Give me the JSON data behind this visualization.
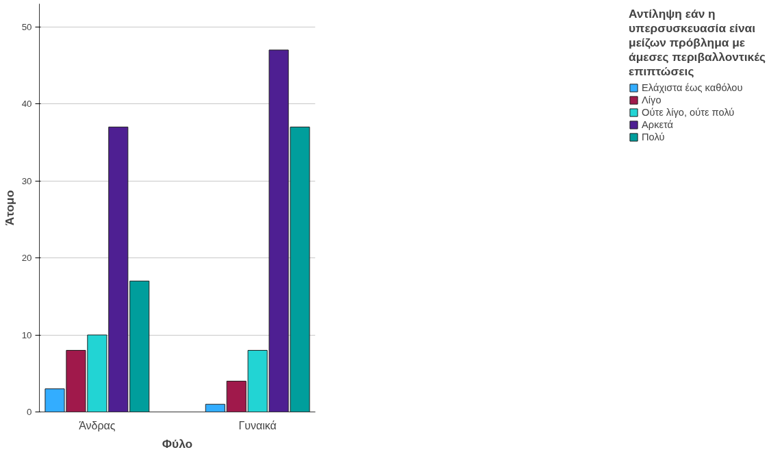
{
  "chart_data": {
    "type": "bar",
    "xlabel": "Φύλο",
    "ylabel": "Άτομο",
    "legend_title": "Αντίληψη εάν η υπερσυσκευασία είναι μείζων πρόβλημα με άμεσες περιβαλλοντικές επιπτώσεις",
    "categories": [
      "Άνδρας",
      "Γυναικά"
    ],
    "series": [
      {
        "name": "Ελάχιστα έως καθόλου",
        "color": "#33adff",
        "values": [
          3,
          1
        ]
      },
      {
        "name": "Λίγο",
        "color": "#a0194b",
        "values": [
          8,
          4
        ]
      },
      {
        "name": "Ούτε λίγο, ούτε πολύ",
        "color": "#22d4d4",
        "values": [
          10,
          8
        ]
      },
      {
        "name": "Αρκετά",
        "color": "#4e1f92",
        "values": [
          37,
          47
        ]
      },
      {
        "name": "Πολύ",
        "color": "#009e9c",
        "values": [
          17,
          37
        ]
      }
    ],
    "ylim": [
      0,
      53
    ],
    "yticks": [
      0,
      10,
      20,
      30,
      40,
      50
    ],
    "grid": "y",
    "legend": "right"
  }
}
